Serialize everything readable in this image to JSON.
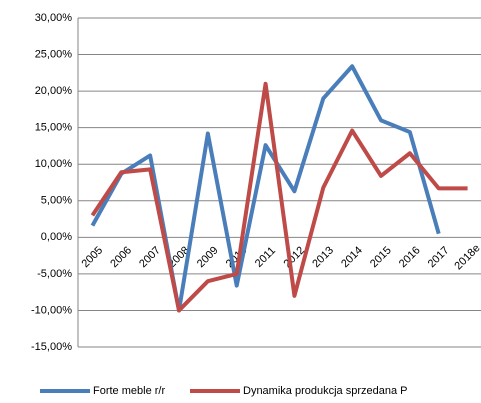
{
  "chart_data": {
    "type": "line",
    "categories": [
      "2005",
      "2006",
      "2007",
      "2008",
      "2009",
      "2010",
      "2011",
      "2012",
      "2013",
      "2014",
      "2015",
      "2016",
      "2017",
      "2018e"
    ],
    "series": [
      {
        "name": "Forte meble r/r",
        "color": "#4a7ebb",
        "values": [
          1.6,
          8.7,
          11.2,
          -10,
          14.2,
          -6.6,
          12.6,
          6.3,
          19,
          23.4,
          16,
          14.4,
          0.5,
          null
        ]
      },
      {
        "name": "Dynamika produkcja sprzedana P",
        "color": "#be4b48",
        "values": [
          3,
          8.9,
          9.3,
          -10,
          -6,
          -5,
          21,
          -8,
          6.8,
          14.6,
          8.4,
          11.5,
          6.7,
          6.7
        ]
      }
    ],
    "ylim": [
      -15,
      30
    ],
    "yticks": [
      {
        "value": -15,
        "label": "-15,00%"
      },
      {
        "value": -10,
        "label": "-10,00%"
      },
      {
        "value": -5,
        "label": "-5,00%"
      },
      {
        "value": 0,
        "label": "0,00%"
      },
      {
        "value": 5,
        "label": "5,00%"
      },
      {
        "value": 10,
        "label": "10,00%"
      },
      {
        "value": 15,
        "label": "15,00%"
      },
      {
        "value": 20,
        "label": "20,00%"
      },
      {
        "value": 25,
        "label": "25,00%"
      },
      {
        "value": 30,
        "label": "30,00%"
      }
    ],
    "grid": true,
    "legend": "bottom"
  }
}
